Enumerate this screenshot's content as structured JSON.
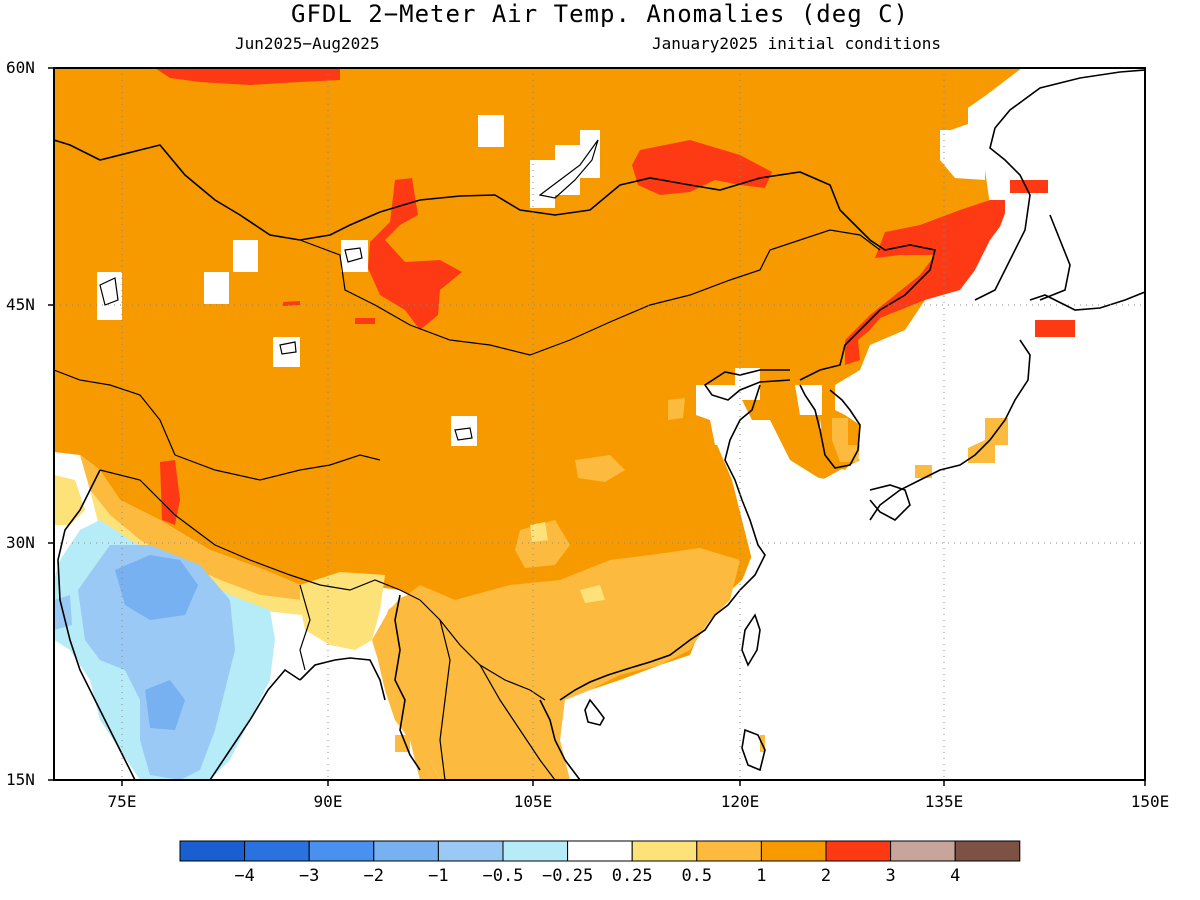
{
  "title": "GFDL 2−Meter Air Temp. Anomalies (deg C)",
  "period": "Jun2025−Aug2025",
  "initial_conditions": "January2025 initial conditions",
  "lat_labels": [
    "60N",
    "45N",
    "30N",
    "15N"
  ],
  "lon_labels": [
    "75E",
    "90E",
    "105E",
    "120E",
    "135E",
    "150E"
  ],
  "colorbar": {
    "colors": [
      "#1a5fcf",
      "#2a72e0",
      "#4a90ee",
      "#77b1f2",
      "#99c9f4",
      "#b6ebf8",
      "#ffffff",
      "#fde27a",
      "#fcba3e",
      "#f79a00",
      "#fd3a14",
      "#c8a59b",
      "#7d5244"
    ],
    "labels": [
      "−4",
      "−3",
      "−2",
      "−1",
      "−0.5",
      "−0.25",
      "0.25",
      "0.5",
      "1",
      "2",
      "3",
      "4"
    ]
  }
}
